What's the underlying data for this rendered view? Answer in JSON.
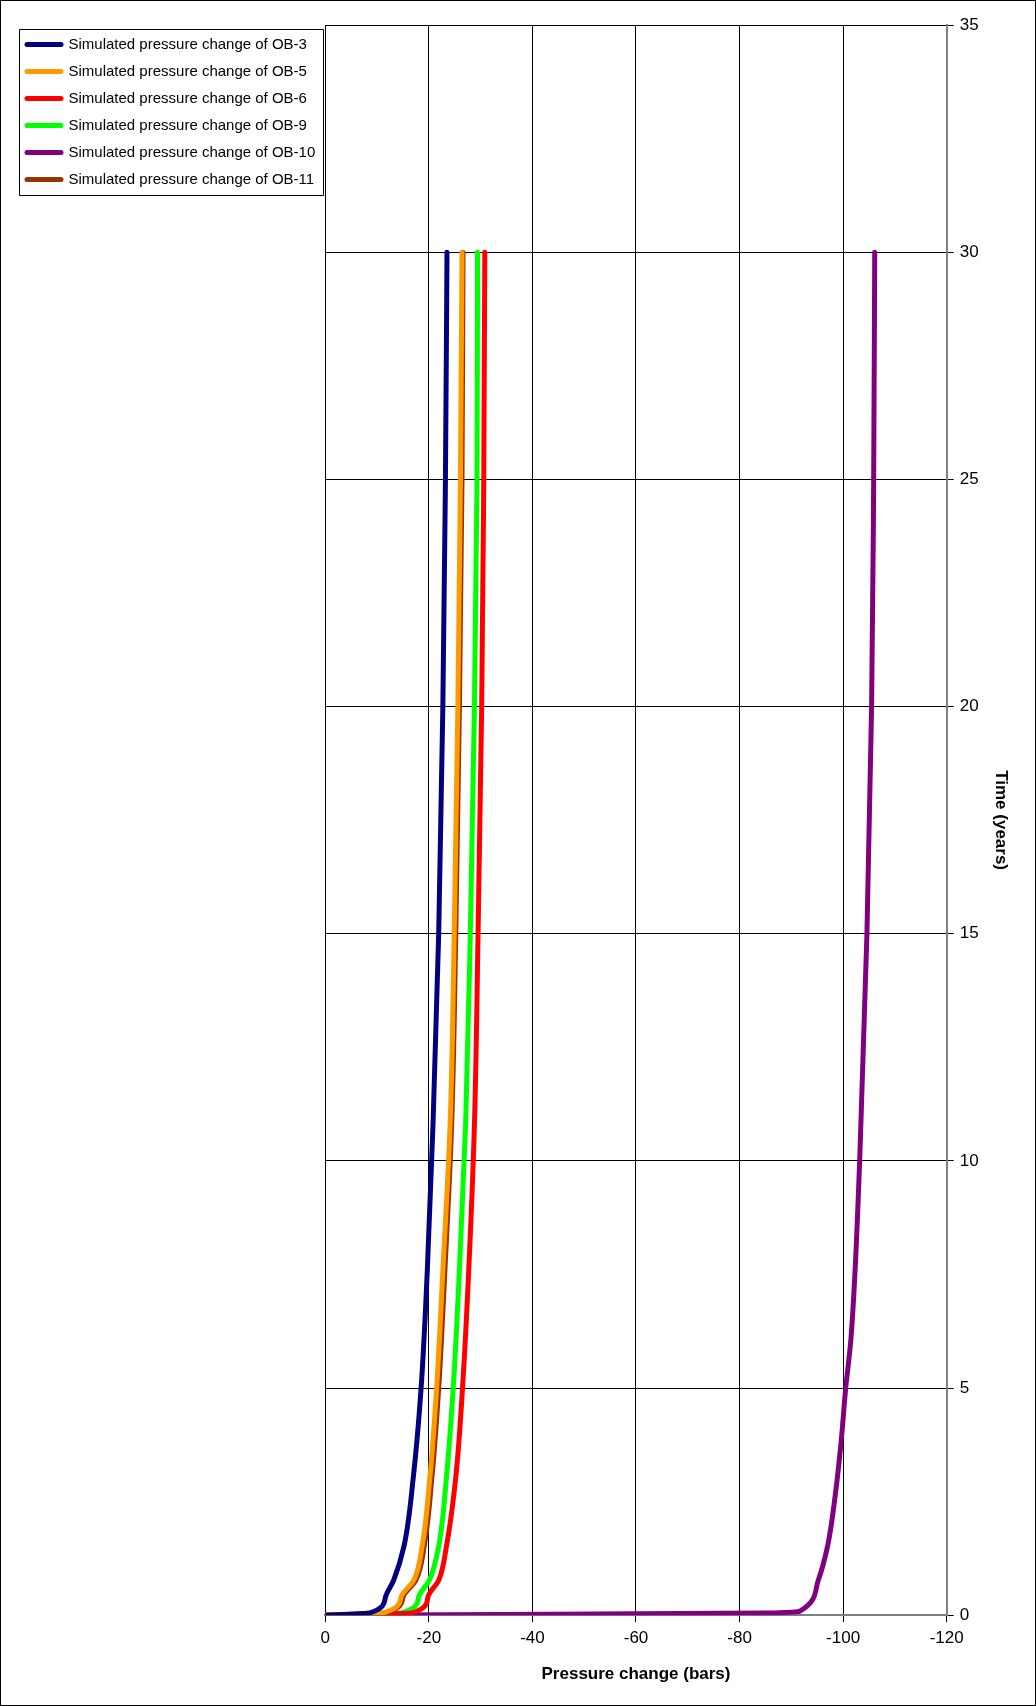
{
  "chart_data": {
    "type": "line",
    "xlabel": "Pressure change (bars)",
    "ylabel": "Time (years)",
    "xlim": [
      0,
      -120
    ],
    "xticks": [
      0,
      -20,
      -40,
      -60,
      -80,
      -100,
      -120
    ],
    "ylim": [
      0,
      35
    ],
    "yticks": [
      0,
      5,
      10,
      15,
      20,
      25,
      30,
      35
    ],
    "grid": true,
    "legend": "left",
    "marker": "none",
    "line_style": "solid",
    "series": [
      {
        "name": "Simulated pressure change of OB-3",
        "color": "#000080",
        "x": [
          0,
          -8.6,
          -11.6,
          -13.2,
          -15.2,
          -17.0,
          -18.5,
          -19.7,
          -20.8,
          -21.9,
          -22.7,
          -23.2,
          -23.5
        ],
        "values": [
          0,
          0.05,
          0.39,
          0.77,
          1.52,
          3.04,
          5,
          7.59,
          10.8,
          15,
          20,
          25,
          30
        ]
      },
      {
        "name": "Simulated pressure change of OB-5",
        "color": "#ff9900",
        "x": [
          0,
          -11.2,
          -14.6,
          -17.1,
          -18.7,
          -20.2,
          -21.5,
          -22.7,
          -24.1,
          -24.9,
          -25.6,
          -26.1,
          -26.4
        ],
        "values": [
          0,
          0.05,
          0.39,
          0.77,
          1.52,
          3.04,
          5,
          7.59,
          10.8,
          15,
          20,
          25,
          30
        ]
      },
      {
        "name": "Simulated pressure change of OB-6",
        "color": "#ff0000",
        "x": [
          0,
          -16.7,
          -19.8,
          -21.9,
          -23.4,
          -25.2,
          -26.5,
          -27.7,
          -28.8,
          -29.5,
          -30.2,
          -30.6,
          -30.8
        ],
        "values": [
          0,
          0.05,
          0.39,
          0.77,
          1.52,
          3.04,
          5,
          7.59,
          10.8,
          15,
          20,
          25,
          30
        ]
      },
      {
        "name": "Simulated pressure change of OB-9",
        "color": "#00ff00",
        "x": [
          0,
          -14.7,
          -18.0,
          -20.1,
          -21.9,
          -23.4,
          -24.7,
          -25.9,
          -27.1,
          -28.0,
          -28.8,
          -29.3,
          -29.4
        ],
        "values": [
          0,
          0.05,
          0.39,
          0.77,
          1.52,
          3.04,
          5,
          7.59,
          10.8,
          15,
          20,
          25,
          30
        ]
      },
      {
        "name": "Simulated pressure change of OB-10",
        "color": "#800080",
        "x": [
          0,
          -86.7,
          -91.8,
          -95.2,
          -97.0,
          -98.5,
          -99.6,
          -100.5,
          -101.5,
          -103.2,
          -104.6,
          -105.5,
          -105.9,
          -106.1
        ],
        "values": [
          0,
          0.05,
          0.1,
          0.77,
          1.52,
          2.66,
          3.8,
          5,
          6.07,
          10,
          15,
          20,
          25,
          30
        ]
      },
      {
        "name": "Simulated pressure change of OB-11",
        "color": "#993300",
        "x": [
          0,
          -11.6,
          -15.0,
          -17.5,
          -19.1,
          -20.6,
          -21.9,
          -23.1,
          -24.4,
          -25.2,
          -25.9,
          -26.4,
          -26.6
        ],
        "values": [
          0,
          0.05,
          0.39,
          0.77,
          1.52,
          3.04,
          5,
          7.59,
          10.8,
          15,
          20,
          25,
          30
        ]
      }
    ]
  }
}
